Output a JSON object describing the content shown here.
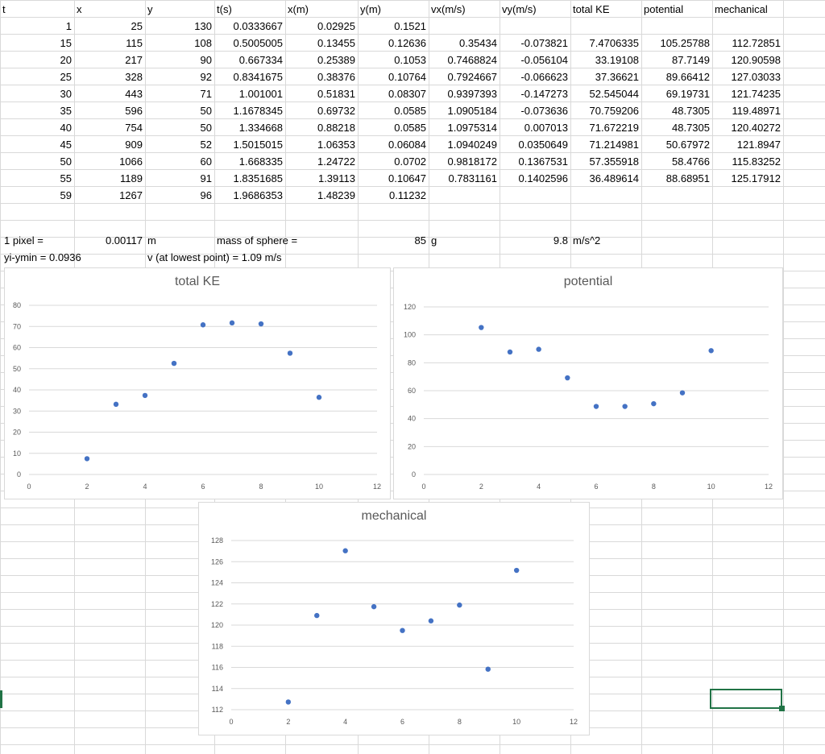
{
  "headers": [
    "t",
    "x",
    "y",
    "t(s)",
    "x(m)",
    "y(m)",
    "vx(m/s)",
    "vy(m/s)",
    "total KE",
    "potential",
    "mechanical"
  ],
  "rows": [
    [
      "1",
      "25",
      "130",
      "0.0333667",
      "0.02925",
      "0.1521",
      "",
      "",
      "",
      "",
      ""
    ],
    [
      "15",
      "115",
      "108",
      "0.5005005",
      "0.13455",
      "0.12636",
      "0.35434",
      "-0.073821",
      "7.4706335",
      "105.25788",
      "112.72851"
    ],
    [
      "20",
      "217",
      "90",
      "0.667334",
      "0.25389",
      "0.1053",
      "0.7468824",
      "-0.056104",
      "33.19108",
      "87.7149",
      "120.90598"
    ],
    [
      "25",
      "328",
      "92",
      "0.8341675",
      "0.38376",
      "0.10764",
      "0.7924667",
      "-0.066623",
      "37.36621",
      "89.66412",
      "127.03033"
    ],
    [
      "30",
      "443",
      "71",
      "1.001001",
      "0.51831",
      "0.08307",
      "0.9397393",
      "-0.147273",
      "52.545044",
      "69.19731",
      "121.74235"
    ],
    [
      "35",
      "596",
      "50",
      "1.1678345",
      "0.69732",
      "0.0585",
      "1.0905184",
      "-0.073636",
      "70.759206",
      "48.7305",
      "119.48971"
    ],
    [
      "40",
      "754",
      "50",
      "1.334668",
      "0.88218",
      "0.0585",
      "1.0975314",
      "0.007013",
      "71.672219",
      "48.7305",
      "120.40272"
    ],
    [
      "45",
      "909",
      "52",
      "1.5015015",
      "1.06353",
      "0.06084",
      "1.0940249",
      "0.0350649",
      "71.214981",
      "50.67972",
      "121.8947"
    ],
    [
      "50",
      "1066",
      "60",
      "1.668335",
      "1.24722",
      "0.0702",
      "0.9818172",
      "0.1367531",
      "57.355918",
      "58.4766",
      "115.83252"
    ],
    [
      "55",
      "1189",
      "91",
      "1.8351685",
      "1.39113",
      "0.10647",
      "0.7831161",
      "0.1402596",
      "36.489614",
      "88.68951",
      "125.17912"
    ],
    [
      "59",
      "1267",
      "96",
      "1.9686353",
      "1.48239",
      "0.11232",
      "",
      "",
      "",
      "",
      ""
    ]
  ],
  "notes": {
    "pixel_label": "1 pixel =",
    "pixel_value": "0.00117",
    "pixel_unit": "m",
    "mass_label": "mass of sphere =",
    "mass_value": "85",
    "mass_unit": "g",
    "g_value": "9.8",
    "g_unit": "m/s^2",
    "yi_ymin": "yi-ymin = 0.0936",
    "v_lowest": "v (at lowest point) = 1.09 m/s"
  },
  "colors": {
    "marker": "#4472c4",
    "grid": "#d9d9d9",
    "selection": "#217346"
  },
  "chart_data": [
    {
      "type": "scatter",
      "title": "total KE",
      "x": [
        2,
        3,
        4,
        5,
        6,
        7,
        8,
        9,
        10
      ],
      "y": [
        7.4706335,
        33.19108,
        37.36621,
        52.545044,
        70.759206,
        71.672219,
        71.214981,
        57.355918,
        36.489614
      ],
      "xlim": [
        0,
        12
      ],
      "ylim": [
        0,
        80
      ],
      "xticks": [
        0,
        2,
        4,
        6,
        8,
        10,
        12
      ],
      "yticks": [
        0,
        10,
        20,
        30,
        40,
        50,
        60,
        70,
        80
      ],
      "grid": true
    },
    {
      "type": "scatter",
      "title": "potential",
      "x": [
        2,
        3,
        4,
        5,
        6,
        7,
        8,
        9,
        10
      ],
      "y": [
        105.25788,
        87.7149,
        89.66412,
        69.19731,
        48.7305,
        48.7305,
        50.67972,
        58.4766,
        88.68951
      ],
      "xlim": [
        0,
        12
      ],
      "ylim": [
        0,
        120
      ],
      "xticks": [
        0,
        2,
        4,
        6,
        8,
        10,
        12
      ],
      "yticks": [
        0,
        20,
        40,
        60,
        80,
        100,
        120
      ],
      "grid": true
    },
    {
      "type": "scatter",
      "title": "mechanical",
      "x": [
        2,
        3,
        4,
        5,
        6,
        7,
        8,
        9,
        10
      ],
      "y": [
        112.72851,
        120.90598,
        127.03033,
        121.74235,
        119.48971,
        120.40272,
        121.8947,
        115.83252,
        125.17912
      ],
      "xlim": [
        0,
        12
      ],
      "ylim": [
        112,
        128
      ],
      "xticks": [
        0,
        2,
        4,
        6,
        8,
        10,
        12
      ],
      "yticks": [
        112,
        114,
        116,
        118,
        120,
        122,
        124,
        126,
        128
      ],
      "grid": true
    }
  ]
}
